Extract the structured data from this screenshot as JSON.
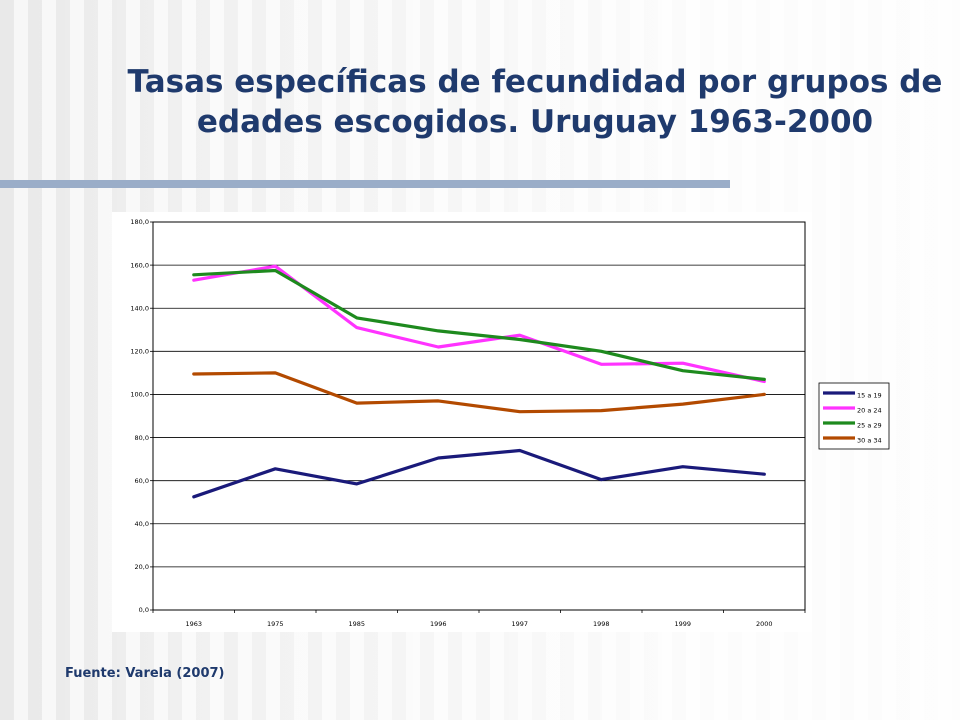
{
  "title": "Tasas específicas de fecundidad por grupos de edades escogidos. Uruguay 1963-2000",
  "source": "Fuente: Varela (2007)",
  "chart_data": {
    "type": "line",
    "title": "Tasas específicas de fecundidad por grupos de edades escogidos. Uruguay 1963-2000",
    "xlabel": "",
    "ylabel": "",
    "categories": [
      "1963",
      "1975",
      "1985",
      "1996",
      "1997",
      "1998",
      "1999",
      "2000"
    ],
    "ylim": [
      0,
      180
    ],
    "yticks": [
      "0,0",
      "20,0",
      "40,0",
      "60,0",
      "80,0",
      "100,0",
      "120,0",
      "140,0",
      "160,0",
      "180,0"
    ],
    "grid": true,
    "legend_position": "right",
    "series": [
      {
        "name": "15 a 19",
        "color": "#1a1a7a",
        "values": [
          52.5,
          65.5,
          58.5,
          70.5,
          74.0,
          60.5,
          66.5,
          63.0
        ]
      },
      {
        "name": "20 a 24",
        "color": "#ff33ff",
        "values": [
          153.0,
          159.5,
          131.0,
          122.0,
          127.5,
          114.0,
          114.5,
          106.0
        ]
      },
      {
        "name": "25 a 29",
        "color": "#1e8a1e",
        "values": [
          155.5,
          157.5,
          135.5,
          129.5,
          125.5,
          120.0,
          111.0,
          107.0
        ]
      },
      {
        "name": "30 a 34",
        "color": "#b34a00",
        "values": [
          109.5,
          110.0,
          96.0,
          97.0,
          92.0,
          92.5,
          95.5,
          100.0
        ]
      }
    ]
  }
}
